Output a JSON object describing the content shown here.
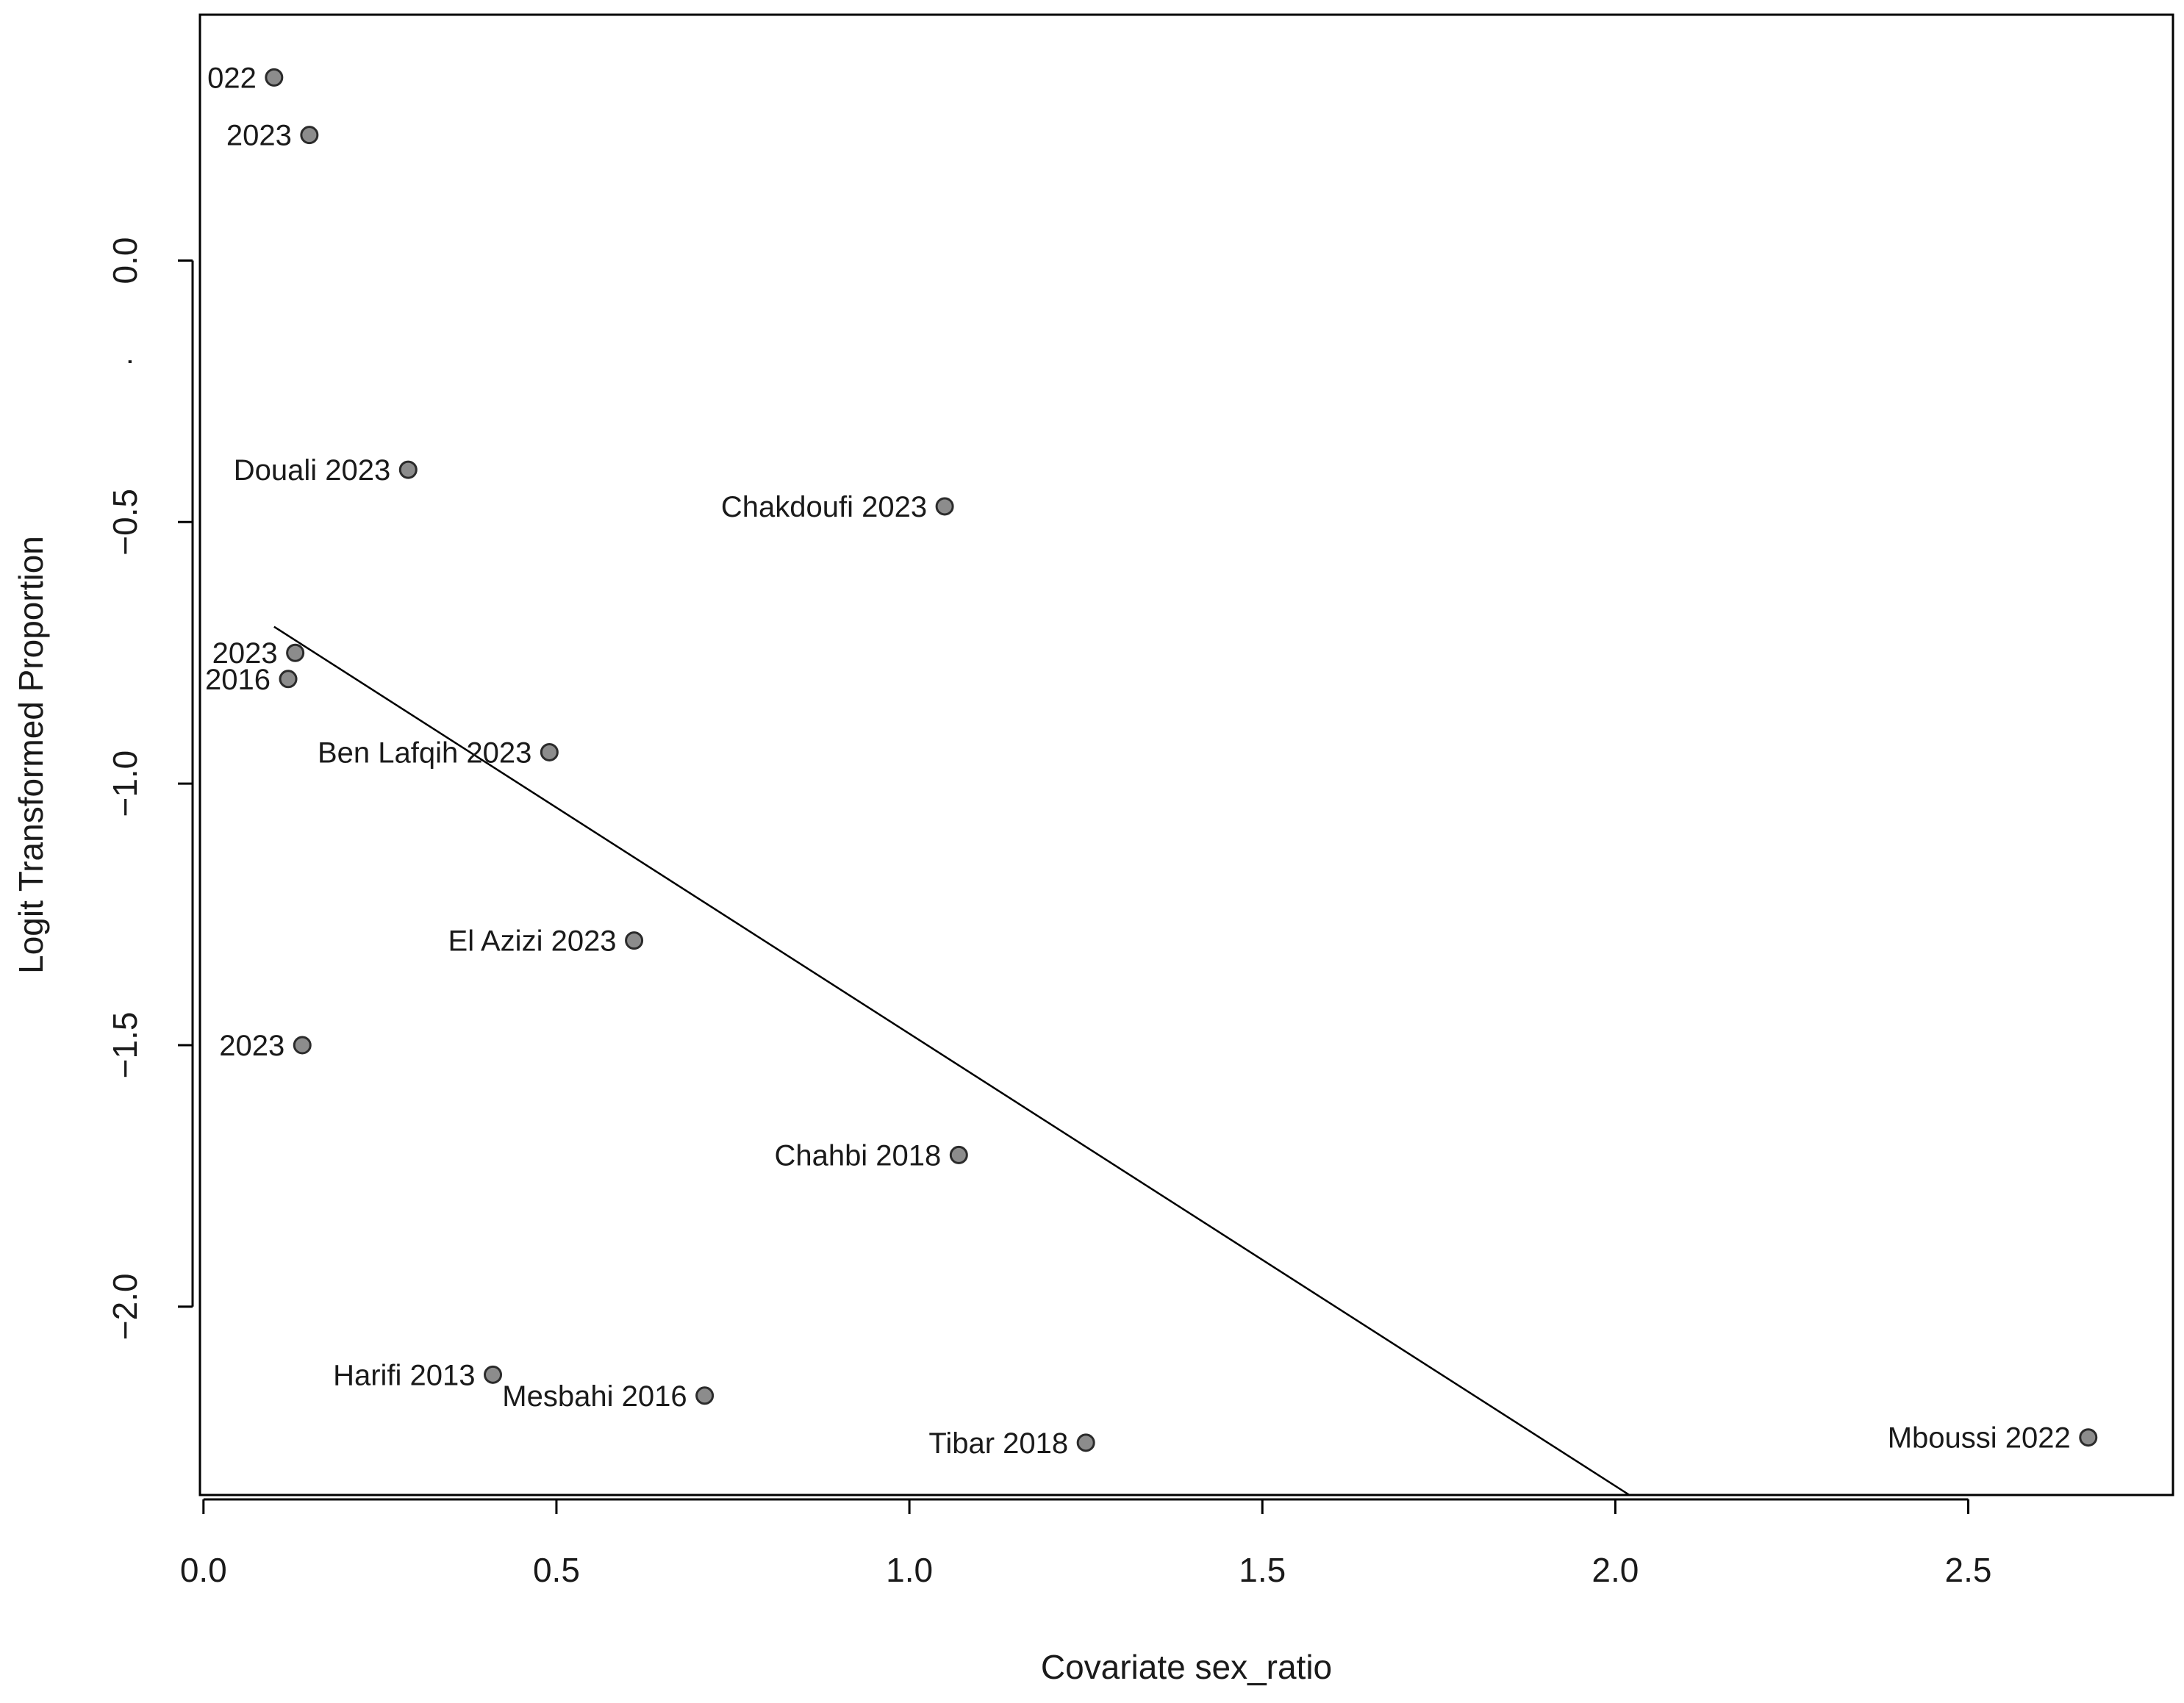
{
  "chart_data": {
    "type": "scatter",
    "title": "",
    "xlabel": "Covariate sex_ratio",
    "ylabel": "Logit Transformed Proportion",
    "xlim": [
      -0.005,
      2.79
    ],
    "ylim": [
      -2.36,
      0.47
    ],
    "x_ticks": [
      0.0,
      0.5,
      1.0,
      1.5,
      2.0,
      2.5
    ],
    "x_tick_labels": [
      "0.0",
      "0.5",
      "1.0",
      "1.5",
      "2.0",
      "2.5"
    ],
    "y_ticks": [
      0.0,
      -0.5,
      -1.0,
      -1.5,
      -2.0
    ],
    "y_tick_labels": [
      "0.0",
      "−0.5",
      "−1.0",
      "−1.5",
      "−2.0"
    ],
    "points": [
      {
        "label": "022",
        "x": 0.1,
        "y": 0.35
      },
      {
        "label": "2023",
        "x": 0.15,
        "y": 0.24
      },
      {
        "label": "Douali 2023",
        "x": 0.29,
        "y": -0.4
      },
      {
        "label": "Chakdoufi 2023",
        "x": 1.05,
        "y": -0.47
      },
      {
        "label": "2023",
        "x": 0.13,
        "y": -0.75
      },
      {
        "label": "2016",
        "x": 0.12,
        "y": -0.8
      },
      {
        "label": "Ben Lafqih 2023",
        "x": 0.49,
        "y": -0.94
      },
      {
        "label": "El Azizi 2023",
        "x": 0.61,
        "y": -1.3
      },
      {
        "label": "2023",
        "x": 0.14,
        "y": -1.5
      },
      {
        "label": "Chahbi 2018",
        "x": 1.07,
        "y": -1.71
      },
      {
        "label": "Harifi 2013",
        "x": 0.41,
        "y": -2.13
      },
      {
        "label": "Mesbahi 2016",
        "x": 0.71,
        "y": -2.17
      },
      {
        "label": "Tibar 2018",
        "x": 1.25,
        "y": -2.26
      },
      {
        "label": "Mboussi 2022",
        "x": 2.67,
        "y": -2.25
      }
    ],
    "regression_line": {
      "x": [
        0.1,
        2.02
      ],
      "y": [
        -0.7,
        -2.36
      ]
    },
    "stray_mark": "."
  }
}
